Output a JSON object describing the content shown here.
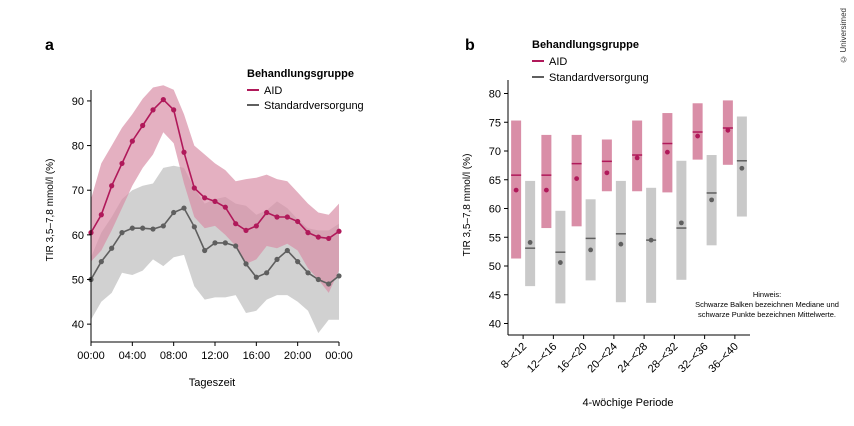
{
  "copyright": "© Universimed",
  "colors": {
    "aid": "#b0195a",
    "aid_band": "#d98ea7",
    "std": "#5f5f5f",
    "std_band": "#c9c9c9"
  },
  "legend": {
    "title": "Behandlungsgruppe",
    "aid": "AID",
    "std": "Standardversorgung"
  },
  "note": [
    "Hinweis:",
    "Schwarze Balken bezeichnen Mediane und",
    "schwarze Punkte bezeichnen Mittelwerte."
  ],
  "chart_data": [
    {
      "panel": "a",
      "type": "line",
      "xlabel": "Tageszeit",
      "ylabel": "TIR 3,5–7,8 mmol/l (%)",
      "ylim": [
        36,
        92
      ],
      "yticks": [
        40,
        50,
        60,
        70,
        80,
        90
      ],
      "xticks": [
        "00:00",
        "04:00",
        "08:00",
        "12:00",
        "16:00",
        "20:00",
        "00:00"
      ],
      "x": [
        0,
        1,
        2,
        3,
        4,
        5,
        6,
        7,
        8,
        9,
        10,
        11,
        12,
        13,
        14,
        15,
        16,
        17,
        18,
        19,
        20,
        21,
        22,
        23,
        24
      ],
      "series": [
        {
          "name": "AID",
          "values": [
            60.5,
            64.5,
            71,
            76,
            81,
            84.5,
            88,
            90.3,
            88,
            78.5,
            70.5,
            68.3,
            67.5,
            66.2,
            62.5,
            61,
            62,
            65,
            64,
            64,
            63,
            60.5,
            59.5,
            59.2,
            60.8
          ],
          "band_upper": [
            68,
            76,
            80,
            84,
            87,
            90.5,
            93,
            93.5,
            92.5,
            87,
            80,
            78,
            76,
            74.5,
            72,
            72.5,
            72.8,
            73.5,
            72.5,
            72,
            69.5,
            67,
            65,
            64.5,
            67
          ],
          "band_lower": [
            54,
            56.5,
            61,
            66,
            71,
            75,
            78,
            83,
            80.5,
            71.5,
            64,
            61.5,
            62,
            60,
            57.5,
            53.5,
            54.5,
            57.5,
            57,
            58,
            56.5,
            52.5,
            50,
            47,
            52
          ]
        },
        {
          "name": "Standardversorgung",
          "values": [
            50,
            54,
            57,
            60.5,
            61.5,
            61.5,
            61.3,
            62,
            65,
            66,
            61.8,
            56.5,
            58.2,
            58.2,
            57.5,
            53.5,
            50.5,
            51.5,
            54.5,
            56.5,
            54,
            51.5,
            50,
            49,
            50.8
          ],
          "band_upper": [
            55,
            60.5,
            64,
            68,
            70,
            71,
            71.5,
            75,
            75.5,
            75,
            70.5,
            67,
            68,
            68.5,
            67,
            66.5,
            64.5,
            65.5,
            67.5,
            66,
            63.5,
            61.5,
            61,
            61,
            62.5
          ],
          "band_lower": [
            41,
            45,
            47,
            51.5,
            51,
            52,
            54.5,
            53,
            55,
            55.5,
            48.5,
            45.5,
            46,
            46,
            46.5,
            42.5,
            43,
            45.5,
            46.5,
            46.5,
            45,
            43,
            38,
            41,
            41
          ]
        }
      ]
    },
    {
      "panel": "b",
      "type": "boxplot",
      "xlabel": "4-wöchige Periode",
      "ylabel": "TIR 3,5–7,8 mmol/l (%)",
      "ylim": [
        38,
        82
      ],
      "yticks": [
        40,
        45,
        50,
        55,
        60,
        65,
        70,
        75,
        80
      ],
      "categories": [
        "8–<12",
        "12–<16",
        "16–<20",
        "20–<24",
        "24–<28",
        "28–<32",
        "32–<36",
        "36–<40"
      ],
      "series": [
        {
          "name": "AID",
          "upper": [
            75.3,
            72.8,
            72.8,
            72,
            75.3,
            76.6,
            78.3,
            78.8
          ],
          "lower": [
            51.3,
            56.6,
            56.9,
            63,
            63,
            62.8,
            68.5,
            67.6
          ],
          "median": [
            65.8,
            65.8,
            67.8,
            68.2,
            69.3,
            71.3,
            73.3,
            74
          ],
          "mean": [
            63.2,
            63.2,
            65.2,
            66.2,
            68.8,
            69.8,
            72.6,
            73.6
          ]
        },
        {
          "name": "Standardversorgung",
          "upper": [
            64.8,
            59.6,
            61.6,
            64.8,
            63.6,
            68.3,
            69.3,
            76
          ],
          "lower": [
            46.5,
            43.5,
            47.5,
            43.7,
            43.6,
            47.6,
            53.6,
            58.6
          ],
          "median": [
            53.1,
            52.4,
            54.8,
            55.6,
            54.5,
            56.6,
            62.7,
            68.3
          ],
          "mean": [
            54.1,
            50.6,
            52.8,
            53.8,
            54.5,
            57.5,
            61.5,
            67
          ]
        }
      ]
    }
  ]
}
